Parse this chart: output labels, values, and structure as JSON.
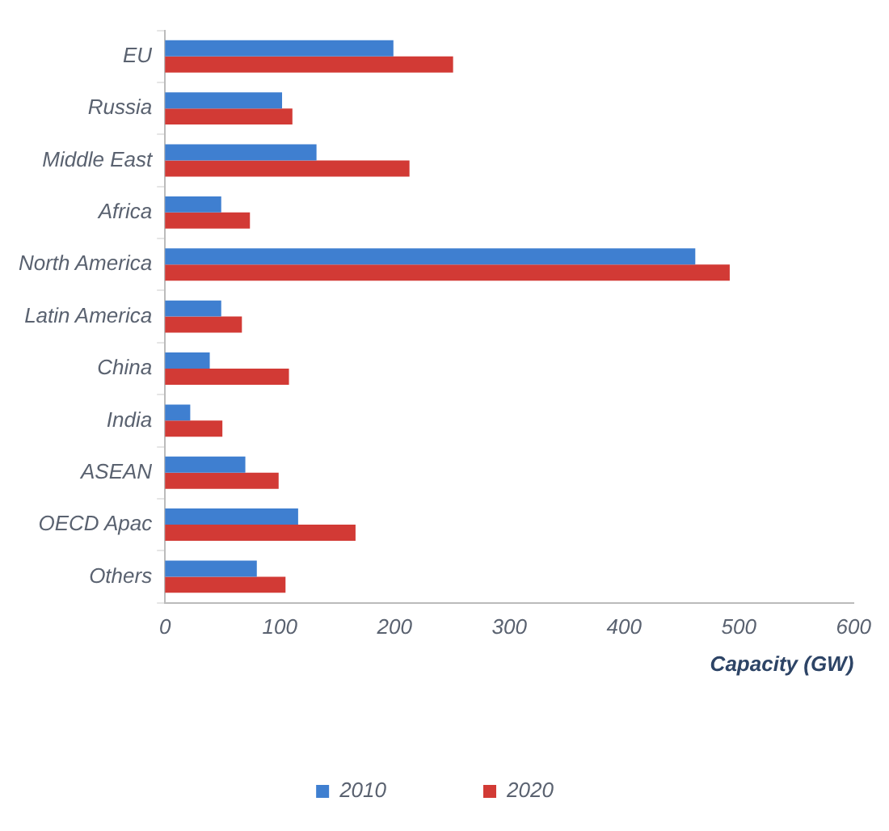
{
  "chart_data": {
    "type": "bar",
    "orientation": "horizontal",
    "xlabel": "Capacity (GW)",
    "categories": [
      "EU",
      "Russia",
      "Middle East",
      "Africa",
      "North America",
      "Latin America",
      "China",
      "India",
      "ASEAN",
      "OECD Apac",
      "Others"
    ],
    "series": [
      {
        "name": "2010",
        "color": "#3f7fd0",
        "values": [
          199,
          102,
          132,
          49,
          462,
          49,
          39,
          22,
          70,
          116,
          80
        ]
      },
      {
        "name": "2020",
        "color": "#d23a35",
        "values": [
          251,
          111,
          213,
          74,
          492,
          67,
          108,
          50,
          99,
          166,
          105
        ]
      }
    ],
    "xlim": [
      0,
      600
    ],
    "xticks": [
      0,
      100,
      200,
      300,
      400,
      500,
      600
    ],
    "grid": false,
    "legend": "bottom"
  }
}
